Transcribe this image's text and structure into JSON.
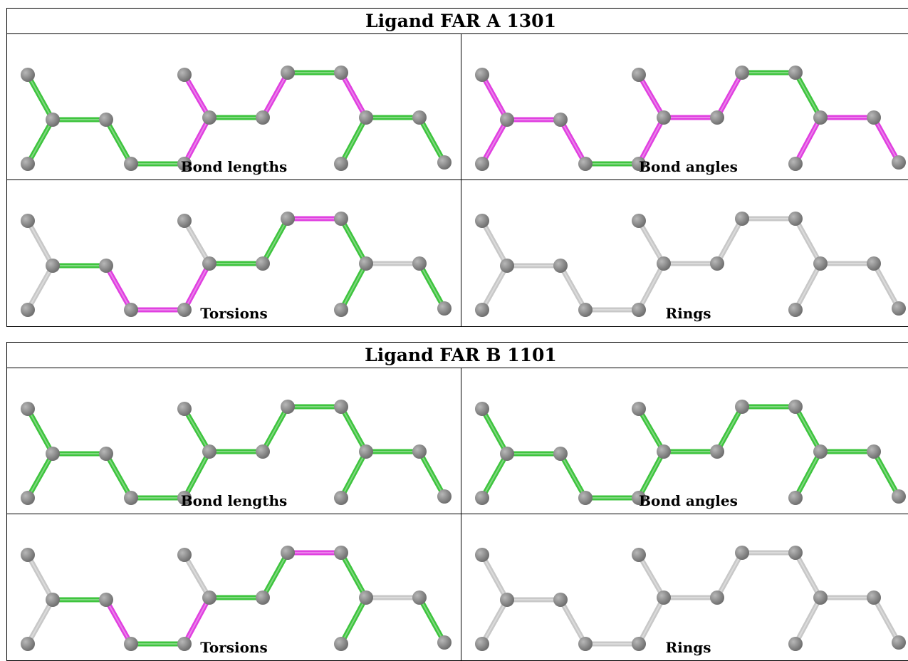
{
  "colors": {
    "pass": "#3ec43e",
    "outlier": "#e040e0",
    "not_assessed": "#c8c8c8",
    "atom": "#707070"
  },
  "ligands": [
    {
      "title": "Ligand FAR A 1301",
      "panels": [
        {
          "caption": "Bond lengths",
          "bond_status": [
            "pass",
            "pass",
            "pass",
            "pass",
            "pass",
            "outlier",
            "outlier",
            "pass",
            "outlier",
            "pass",
            "outlier",
            "pass",
            "pass",
            "pass",
            "pass"
          ]
        },
        {
          "caption": "Bond angles",
          "bond_status": [
            "outlier",
            "outlier",
            "outlier",
            "outlier",
            "pass",
            "outlier",
            "outlier",
            "outlier",
            "outlier",
            "pass",
            "pass",
            "outlier",
            "outlier",
            "outlier",
            "outlier"
          ]
        },
        {
          "caption": "Torsions",
          "bond_status": [
            "not_assessed",
            "not_assessed",
            "pass",
            "outlier",
            "outlier",
            "outlier",
            "not_assessed",
            "pass",
            "pass",
            "outlier",
            "pass",
            "pass",
            "not_assessed",
            "pass",
            "not_assessed"
          ]
        },
        {
          "caption": "Rings",
          "bond_status": [
            "not_assessed",
            "not_assessed",
            "not_assessed",
            "not_assessed",
            "not_assessed",
            "not_assessed",
            "not_assessed",
            "not_assessed",
            "not_assessed",
            "not_assessed",
            "not_assessed",
            "not_assessed",
            "not_assessed",
            "not_assessed",
            "not_assessed"
          ]
        }
      ]
    },
    {
      "title": "Ligand FAR B 1101",
      "panels": [
        {
          "caption": "Bond lengths",
          "bond_status": [
            "pass",
            "pass",
            "pass",
            "pass",
            "pass",
            "pass",
            "pass",
            "pass",
            "pass",
            "pass",
            "pass",
            "pass",
            "pass",
            "pass",
            "pass"
          ]
        },
        {
          "caption": "Bond angles",
          "bond_status": [
            "pass",
            "pass",
            "pass",
            "pass",
            "pass",
            "pass",
            "pass",
            "pass",
            "pass",
            "pass",
            "pass",
            "pass",
            "pass",
            "pass",
            "pass"
          ]
        },
        {
          "caption": "Torsions",
          "bond_status": [
            "not_assessed",
            "not_assessed",
            "pass",
            "outlier",
            "pass",
            "outlier",
            "not_assessed",
            "pass",
            "pass",
            "outlier",
            "pass",
            "pass",
            "not_assessed",
            "pass",
            "not_assessed"
          ]
        },
        {
          "caption": "Rings",
          "bond_status": [
            "not_assessed",
            "not_assessed",
            "not_assessed",
            "not_assessed",
            "not_assessed",
            "not_assessed",
            "not_assessed",
            "not_assessed",
            "not_assessed",
            "not_assessed",
            "not_assessed",
            "not_assessed",
            "not_assessed",
            "not_assessed",
            "not_assessed"
          ]
        }
      ]
    }
  ]
}
